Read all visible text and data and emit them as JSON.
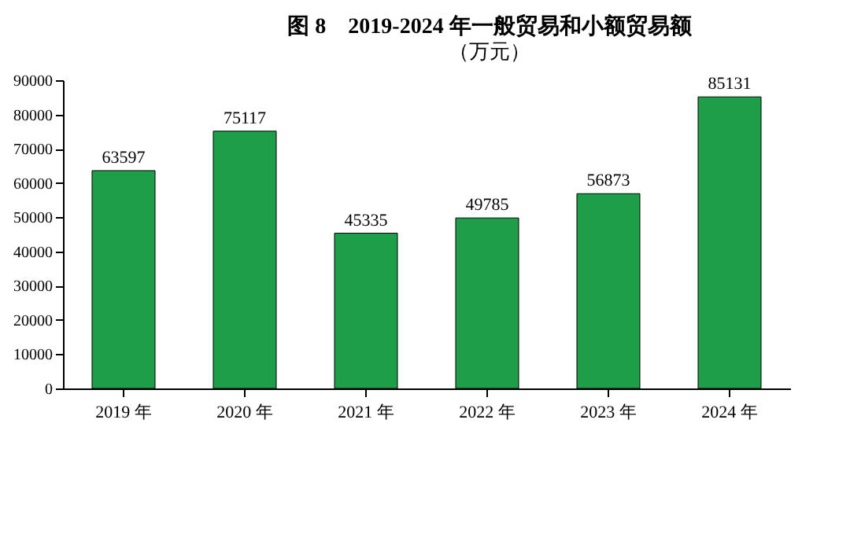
{
  "chart_data": {
    "type": "bar",
    "title": "图 8　2019-2024 年一般贸易和小额贸易额",
    "subtitle": "（万元）",
    "categories": [
      "2019 年",
      "2020 年",
      "2021 年",
      "2022 年",
      "2023 年",
      "2024 年"
    ],
    "values": [
      63597,
      75117,
      45335,
      49785,
      56873,
      85131
    ],
    "color": "#1f9e4a",
    "ylim": [
      0,
      90000
    ],
    "yticks": [
      0,
      10000,
      20000,
      30000,
      40000,
      50000,
      60000,
      70000,
      80000,
      90000
    ],
    "data_labels": true
  }
}
